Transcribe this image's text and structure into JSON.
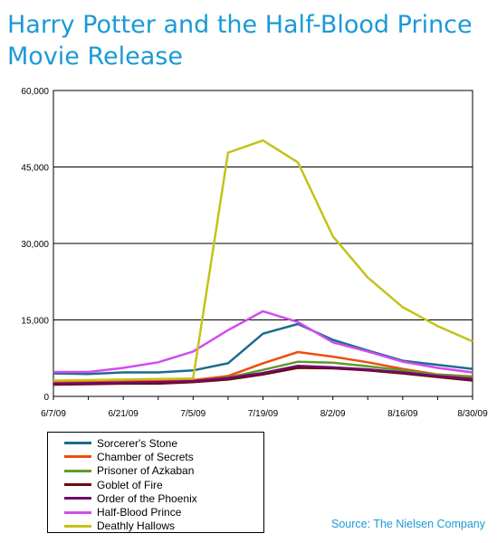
{
  "chart_data": {
    "type": "line",
    "title": "Harry Potter and the Half-Blood Prince Movie Release",
    "x_labels": [
      "6/7/09",
      "6/21/09",
      "7/5/09",
      "7/19/09",
      "8/2/09",
      "8/16/09",
      "8/30/09"
    ],
    "x": [
      "6/7/09",
      "6/14/09",
      "6/21/09",
      "6/28/09",
      "7/5/09",
      "7/12/09",
      "7/19/09",
      "7/26/09",
      "8/2/09",
      "8/9/09",
      "8/16/09",
      "8/23/09",
      "8/30/09"
    ],
    "ylim": [
      0,
      60000
    ],
    "y_ticks": [
      "0",
      "15,000",
      "30,000",
      "45,000",
      "60,000"
    ],
    "grid": true,
    "legend_position": "bottom-left",
    "series": [
      {
        "name": "Sorcerer's Stone",
        "color": "#1f6b8e",
        "values": [
          4500,
          4400,
          4700,
          4700,
          5100,
          6500,
          12300,
          14200,
          11100,
          9000,
          7000,
          6200,
          5400
        ]
      },
      {
        "name": "Chamber of Secrets",
        "color": "#ee4d10",
        "values": [
          2800,
          2900,
          3000,
          3000,
          3200,
          4000,
          6500,
          8700,
          7800,
          6700,
          5400,
          4300,
          3900
        ]
      },
      {
        "name": "Prisoner of Azkaban",
        "color": "#5e9b2a",
        "values": [
          2400,
          2500,
          2700,
          2700,
          3000,
          3700,
          5200,
          6800,
          6600,
          5900,
          5100,
          4200,
          3800
        ]
      },
      {
        "name": "Goblet of Fire",
        "color": "#6b0b0b",
        "values": [
          2300,
          2400,
          2500,
          2500,
          2800,
          3300,
          4300,
          5600,
          5500,
          5100,
          4500,
          3800,
          3100
        ]
      },
      {
        "name": "Order of the Phoenix",
        "color": "#720a6e",
        "values": [
          2500,
          2600,
          2700,
          2800,
          3000,
          3600,
          4600,
          6000,
          5700,
          5300,
          4700,
          4000,
          3400
        ]
      },
      {
        "name": "Half-Blood Prince",
        "color": "#d14cf0",
        "values": [
          4800,
          4800,
          5600,
          6700,
          8800,
          13000,
          16700,
          14600,
          10600,
          8800,
          6800,
          5600,
          4700
        ]
      },
      {
        "name": "Deathly Hallows",
        "color": "#c3c31a",
        "values": [
          3100,
          3200,
          3300,
          3400,
          3500,
          47800,
          50200,
          45900,
          31400,
          23300,
          17500,
          13800,
          10800
        ]
      }
    ]
  },
  "source": "Source: The Nielsen Company"
}
